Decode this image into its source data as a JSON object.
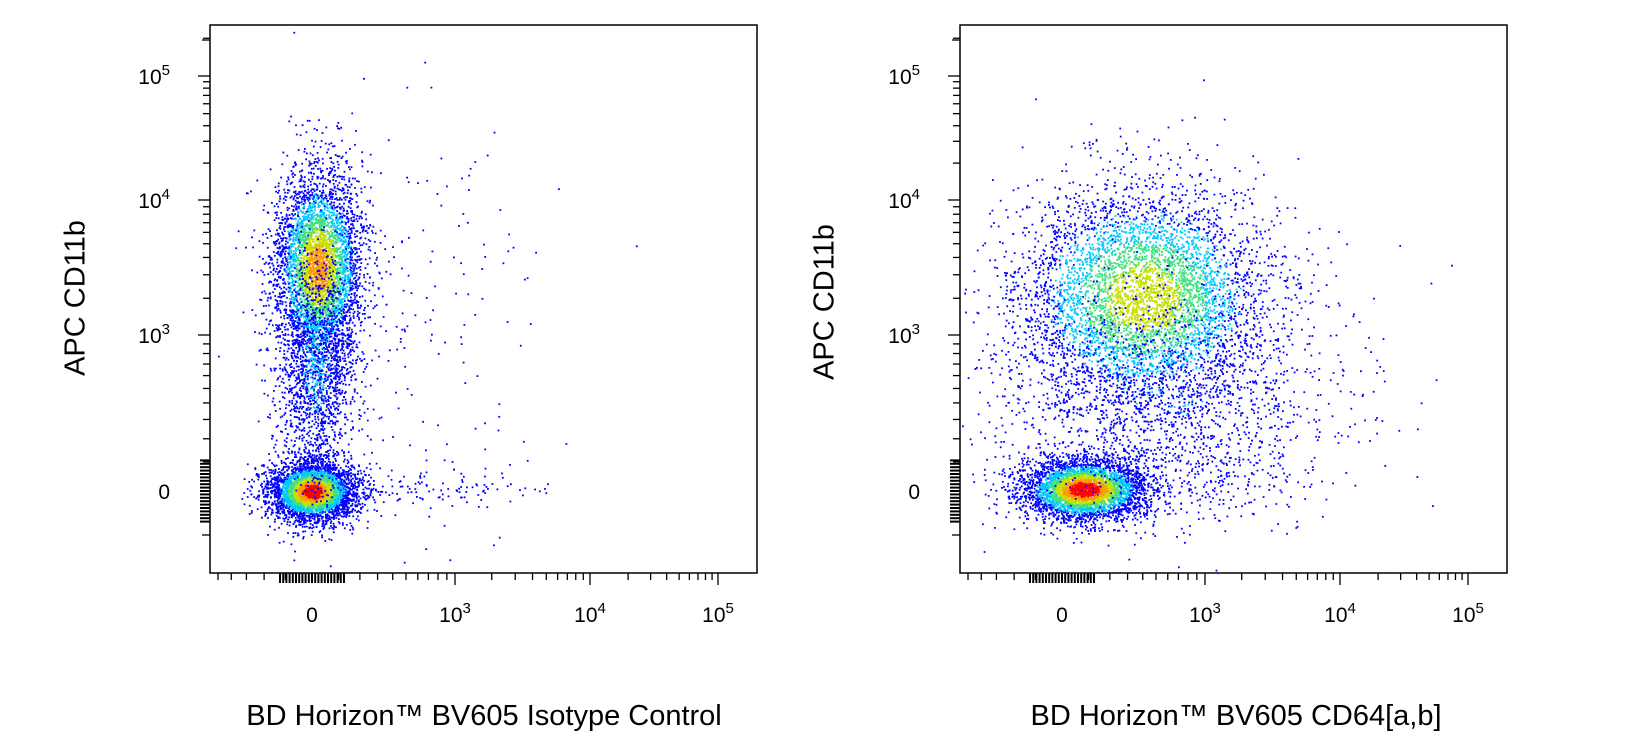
{
  "chart_data": [
    {
      "type": "scatter",
      "subtype": "flow-cytometry-density-dot-plot",
      "xlabel": "BD Horizon™ BV605 Isotype Control",
      "ylabel": "APC CD11b",
      "x_scale": "biexponential",
      "y_scale": "biexponential",
      "x_ticks": [
        "0",
        "10^3",
        "10^4",
        "10^5"
      ],
      "y_ticks": [
        "0",
        "10^3",
        "10^4",
        "10^5"
      ],
      "density_colors": [
        "#0000ff",
        "#00c8ff",
        "#40e080",
        "#c8e000",
        "#ff9a00",
        "#ff0000"
      ],
      "populations": [
        {
          "x_center": 0,
          "y_center": 0,
          "relative_size": 0.55
        },
        {
          "x_center": 0,
          "y_center": 4000,
          "relative_size": 0.45
        }
      ],
      "grid": false,
      "legend": "none"
    },
    {
      "type": "scatter",
      "subtype": "flow-cytometry-density-dot-plot",
      "xlabel": "BD Horizon™ BV605 CD64[a,b]",
      "ylabel": "APC CD11b",
      "x_scale": "biexponential",
      "y_scale": "biexponential",
      "x_ticks": [
        "0",
        "10^3",
        "10^4",
        "10^5"
      ],
      "y_ticks": [
        "0",
        "10^3",
        "10^4",
        "10^5"
      ],
      "density_colors": [
        "#0000ff",
        "#00c8ff",
        "#40e080",
        "#c8e000",
        "#ff9a00",
        "#ff0000"
      ],
      "populations": [
        {
          "x_center": 50,
          "y_center": 0,
          "relative_size": 0.5
        },
        {
          "x_center": 800,
          "y_center": 4000,
          "relative_size": 0.5
        }
      ],
      "grid": false,
      "legend": "none"
    }
  ]
}
